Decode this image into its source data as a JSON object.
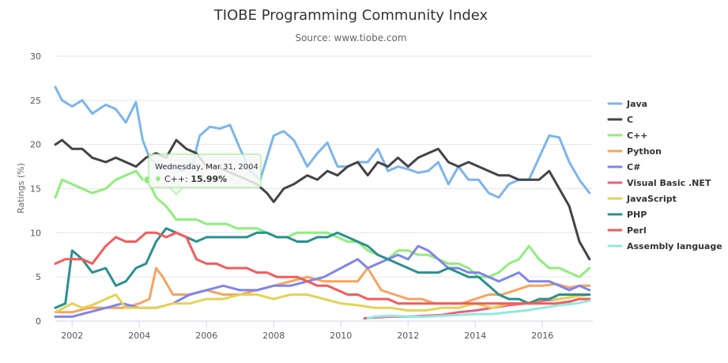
{
  "chart_data": {
    "type": "line",
    "title": "TIOBE Programming Community Index",
    "subtitle": "Source: www.tiobe.com",
    "ylabel": "Ratings (%)",
    "xlabel": "",
    "xlim": [
      2001.5,
      2017.5
    ],
    "ylim": [
      0,
      30
    ],
    "x_ticks": [
      2002,
      2004,
      2006,
      2008,
      2010,
      2012,
      2014,
      2016
    ],
    "y_ticks": [
      0,
      5,
      10,
      15,
      20,
      25,
      30
    ],
    "grid": "horizontal",
    "legend_position": "right",
    "series": [
      {
        "name": "Java",
        "color": "#7cb5ec",
        "x": [
          2001.5,
          2001.7,
          2002,
          2002.3,
          2002.6,
          2003,
          2003.3,
          2003.6,
          2003.9,
          2004.1,
          2004.3,
          2004.6,
          2005,
          2005.3,
          2005.6,
          2005.8,
          2006.1,
          2006.4,
          2006.7,
          2007,
          2007.3,
          2007.6,
          2008,
          2008.3,
          2008.6,
          2009,
          2009.3,
          2009.6,
          2009.9,
          2010.2,
          2010.5,
          2010.8,
          2011.1,
          2011.4,
          2011.7,
          2012,
          2012.3,
          2012.6,
          2012.9,
          2013.2,
          2013.5,
          2013.8,
          2014.1,
          2014.4,
          2014.7,
          2015,
          2015.3,
          2015.6,
          2015.9,
          2016.2,
          2016.5,
          2016.8,
          2017.1,
          2017.4
        ],
        "y": [
          26.5,
          25,
          24.3,
          25,
          23.5,
          24.5,
          24,
          22.5,
          24.8,
          20.5,
          18.5,
          17.5,
          17.5,
          17,
          18,
          21,
          22,
          21.8,
          22.2,
          19.5,
          17,
          16,
          21,
          21.5,
          20.5,
          17.5,
          19,
          20.2,
          17.5,
          17.5,
          18,
          18,
          19.5,
          17,
          17.5,
          17.2,
          16.8,
          17,
          18,
          15.5,
          17.5,
          16,
          16,
          14.5,
          14,
          15.5,
          16,
          16,
          18.5,
          21,
          20.8,
          18,
          16,
          14.5
        ]
      },
      {
        "name": "C",
        "color": "#434348",
        "x": [
          2001.5,
          2001.7,
          2002,
          2002.3,
          2002.6,
          2003,
          2003.3,
          2003.6,
          2003.9,
          2004.2,
          2004.5,
          2004.8,
          2005.1,
          2005.4,
          2005.7,
          2006,
          2006.3,
          2006.6,
          2006.9,
          2007.2,
          2007.5,
          2007.8,
          2008,
          2008.3,
          2008.6,
          2009,
          2009.3,
          2009.6,
          2009.9,
          2010.2,
          2010.5,
          2010.8,
          2011.1,
          2011.4,
          2011.7,
          2012,
          2012.3,
          2012.6,
          2012.9,
          2013.2,
          2013.5,
          2013.8,
          2014.1,
          2014.4,
          2014.7,
          2015,
          2015.3,
          2015.6,
          2015.9,
          2016.2,
          2016.5,
          2016.8,
          2017.1,
          2017.4
        ],
        "y": [
          20,
          20.5,
          19.5,
          19.5,
          18.5,
          18,
          18.5,
          18,
          17.5,
          18.5,
          19,
          18.5,
          20.5,
          19.5,
          19,
          17.5,
          17.5,
          17,
          16.5,
          16,
          15.5,
          14.5,
          13.5,
          15,
          15.5,
          16.5,
          16,
          17,
          16.5,
          17.5,
          18,
          16.5,
          18,
          17.5,
          18.5,
          17.5,
          18.5,
          19,
          19.5,
          18,
          17.5,
          18,
          17.5,
          17,
          16.5,
          16.5,
          16,
          16,
          16,
          17,
          15,
          13,
          9,
          7
        ]
      },
      {
        "name": "C++",
        "color": "#90ed7d",
        "x": [
          2001.5,
          2001.7,
          2002,
          2002.3,
          2002.6,
          2003,
          2003.3,
          2003.6,
          2003.9,
          2004.1,
          2004.25,
          2004.5,
          2004.8,
          2005.1,
          2005.4,
          2005.7,
          2006,
          2006.3,
          2006.6,
          2006.9,
          2007.2,
          2007.5,
          2007.8,
          2008.1,
          2008.4,
          2008.7,
          2009,
          2009.3,
          2009.6,
          2009.9,
          2010.2,
          2010.5,
          2010.8,
          2011.1,
          2011.4,
          2011.7,
          2012,
          2012.3,
          2012.6,
          2012.9,
          2013.2,
          2013.5,
          2013.8,
          2014.1,
          2014.4,
          2014.7,
          2015,
          2015.3,
          2015.6,
          2015.9,
          2016.2,
          2016.5,
          2016.8,
          2017.1,
          2017.4
        ],
        "y": [
          14,
          16,
          15.5,
          15,
          14.5,
          15,
          16,
          16.5,
          17,
          16,
          15.99,
          14,
          13,
          11.5,
          11.5,
          11.5,
          11,
          11,
          11,
          10.5,
          10.5,
          10.5,
          10,
          9.5,
          9.5,
          10,
          10,
          10,
          10,
          9.5,
          9,
          9,
          8,
          7.5,
          7,
          8,
          8,
          7.5,
          7.5,
          7,
          6.5,
          6.5,
          6,
          5,
          5,
          5.5,
          6.5,
          7,
          8.5,
          7,
          6,
          6,
          5.5,
          5,
          6
        ]
      },
      {
        "name": "Python",
        "color": "#f7a35c",
        "x": [
          2001.5,
          2002,
          2002.5,
          2003,
          2003.5,
          2004,
          2004.3,
          2004.5,
          2004.7,
          2005,
          2005.5,
          2006,
          2006.5,
          2007,
          2007.5,
          2008,
          2008.5,
          2009,
          2009.5,
          2010,
          2010.5,
          2010.8,
          2011.2,
          2011.6,
          2012,
          2012.4,
          2012.8,
          2013.2,
          2013.6,
          2014,
          2014.4,
          2014.8,
          2015.2,
          2015.6,
          2016,
          2016.4,
          2016.8,
          2017.1,
          2017.4
        ],
        "y": [
          1,
          1,
          1.5,
          1.5,
          1.5,
          2,
          2.5,
          6,
          5,
          3,
          3,
          3.5,
          3,
          3,
          3.5,
          4,
          4.5,
          5,
          4.5,
          4.5,
          4.5,
          6,
          3.5,
          3,
          2.5,
          2.5,
          2,
          2,
          2,
          2.5,
          3,
          3,
          3.5,
          4,
          4,
          4.2,
          3.8,
          4,
          4
        ]
      },
      {
        "name": "C#",
        "color": "#8085e9",
        "x": [
          2001.5,
          2002,
          2002.5,
          2003,
          2003.5,
          2004,
          2004.5,
          2005,
          2005.5,
          2006,
          2006.5,
          2007,
          2007.5,
          2008,
          2008.5,
          2009,
          2009.5,
          2010,
          2010.5,
          2010.8,
          2011.1,
          2011.4,
          2011.7,
          2012,
          2012.3,
          2012.6,
          2012.9,
          2013.2,
          2013.5,
          2013.8,
          2014.1,
          2014.4,
          2014.7,
          2015,
          2015.3,
          2015.6,
          2015.9,
          2016.2,
          2016.5,
          2016.8,
          2017.1,
          2017.4
        ],
        "y": [
          0.5,
          0.5,
          1,
          1.5,
          2,
          1.5,
          1.5,
          2,
          3,
          3.5,
          4,
          3.5,
          3.5,
          4,
          4,
          4.5,
          5,
          6,
          7,
          6,
          6.5,
          7,
          7.5,
          7,
          8.5,
          8,
          7,
          6,
          6,
          5.5,
          5.5,
          5,
          4.5,
          5,
          5.5,
          4.5,
          4.5,
          4.5,
          4,
          3.5,
          4,
          3.5
        ]
      },
      {
        "name": "Visual Basic .NET",
        "color": "#f15c80",
        "x": [
          2010.7,
          2011,
          2011.5,
          2012,
          2012.5,
          2013,
          2013.5,
          2014,
          2014.5,
          2015,
          2015.5,
          2016,
          2016.5,
          2017,
          2017.4
        ],
        "y": [
          0.3,
          0.4,
          0.5,
          0.5,
          0.6,
          0.7,
          1,
          1.2,
          1.5,
          1.8,
          2,
          2.3,
          2.5,
          2.8,
          3
        ]
      },
      {
        "name": "JavaScript",
        "color": "#e4d354",
        "x": [
          2001.5,
          2002,
          2002.3,
          2002.6,
          2003,
          2003.3,
          2003.6,
          2004,
          2004.5,
          2005,
          2005.5,
          2006,
          2006.5,
          2007,
          2007.5,
          2008,
          2008.5,
          2009,
          2009.5,
          2010,
          2010.5,
          2011,
          2011.5,
          2012,
          2012.5,
          2013,
          2013.5,
          2014,
          2014.5,
          2015,
          2015.5,
          2016,
          2016.5,
          2017,
          2017.4
        ],
        "y": [
          1,
          2,
          1.5,
          1.8,
          2.5,
          3,
          1.5,
          1.5,
          1.5,
          2,
          2,
          2.5,
          2.5,
          3,
          3,
          2.5,
          3,
          3,
          2.5,
          2,
          1.8,
          1.5,
          1.5,
          1.2,
          1.2,
          1.5,
          1.5,
          2,
          1.5,
          2,
          2,
          2.5,
          2.5,
          2.8,
          3
        ]
      },
      {
        "name": "PHP",
        "color": "#2b908f",
        "x": [
          2001.5,
          2001.8,
          2002,
          2002.3,
          2002.6,
          2003,
          2003.3,
          2003.6,
          2003.9,
          2004.2,
          2004.5,
          2004.8,
          2005.1,
          2005.4,
          2005.7,
          2006,
          2006.3,
          2006.6,
          2006.9,
          2007.2,
          2007.5,
          2007.8,
          2008.1,
          2008.4,
          2008.7,
          2009,
          2009.3,
          2009.6,
          2009.9,
          2010.2,
          2010.5,
          2010.8,
          2011.1,
          2011.4,
          2011.7,
          2012,
          2012.3,
          2012.6,
          2012.9,
          2013.2,
          2013.5,
          2013.8,
          2014.1,
          2014.4,
          2014.7,
          2015,
          2015.3,
          2015.6,
          2015.9,
          2016.2,
          2016.5,
          2016.8,
          2017.1,
          2017.4
        ],
        "y": [
          1.5,
          2,
          8,
          7,
          5.5,
          6,
          4,
          4.5,
          6,
          6.5,
          9,
          10.5,
          10,
          9.5,
          9,
          9.5,
          9.5,
          9.5,
          9.5,
          9.5,
          10,
          10,
          9.5,
          9.5,
          9,
          9,
          9.5,
          9.5,
          10,
          9.5,
          9,
          8.5,
          7.5,
          7,
          6.5,
          6,
          5.5,
          5.5,
          5.5,
          6,
          5.5,
          5,
          5,
          4,
          3,
          2.5,
          2.5,
          2,
          2.5,
          2.5,
          3,
          3,
          3,
          3
        ]
      },
      {
        "name": "Perl",
        "color": "#f45b5b",
        "x": [
          2001.5,
          2001.8,
          2002,
          2002.3,
          2002.6,
          2003,
          2003.3,
          2003.6,
          2003.9,
          2004.2,
          2004.5,
          2004.8,
          2005.1,
          2005.4,
          2005.7,
          2006,
          2006.3,
          2006.6,
          2006.9,
          2007.2,
          2007.5,
          2007.8,
          2008.1,
          2008.4,
          2008.7,
          2009,
          2009.3,
          2009.6,
          2009.9,
          2010.2,
          2010.5,
          2010.8,
          2011.1,
          2011.4,
          2011.7,
          2012,
          2012.4,
          2012.8,
          2013.2,
          2013.6,
          2014,
          2014.4,
          2014.8,
          2015.2,
          2015.6,
          2016,
          2016.4,
          2016.8,
          2017.1,
          2017.4
        ],
        "y": [
          6.5,
          7,
          7,
          7,
          6.5,
          8.5,
          9.5,
          9,
          9,
          10,
          10,
          9.5,
          10,
          9.5,
          7,
          6.5,
          6.5,
          6,
          6,
          6,
          5.5,
          5.5,
          5,
          5,
          5,
          4.5,
          4,
          4,
          3.5,
          3,
          3,
          2.5,
          2.5,
          2.5,
          2,
          2,
          2,
          2,
          2,
          2,
          2,
          2,
          2,
          2,
          2,
          2,
          2,
          2.2,
          2.5,
          2.5
        ]
      },
      {
        "name": "Assembly language",
        "color": "#91e8e1",
        "x": [
          2010.8,
          2011,
          2011.5,
          2012,
          2012.5,
          2013,
          2013.5,
          2014,
          2014.5,
          2015,
          2015.5,
          2016,
          2016.5,
          2017,
          2017.4
        ],
        "y": [
          0.3,
          0.5,
          0.6,
          0.5,
          0.5,
          0.6,
          0.7,
          0.8,
          0.8,
          1,
          1.2,
          1.5,
          1.8,
          2,
          2.3
        ]
      }
    ],
    "tooltip": {
      "date": "Wednesday, Mar 31, 2004",
      "series": "C++",
      "value_text": "15.99%",
      "x": 2004.25,
      "y": 15.99
    }
  }
}
